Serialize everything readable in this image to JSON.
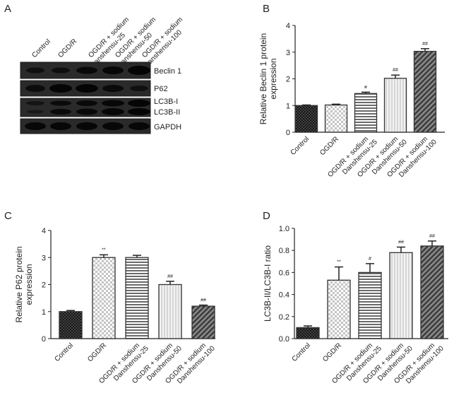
{
  "panels": {
    "a": {
      "letter": "A"
    },
    "b": {
      "letter": "B"
    },
    "c": {
      "letter": "C"
    },
    "d": {
      "letter": "D"
    }
  },
  "blot": {
    "lanes": [
      "Control",
      "OGD/R",
      "OGD/R + sodium Danshensu-25",
      "OGD/R + sodium Danshensu-50",
      "OGD/R + sodium Danshensu-100"
    ],
    "lane_label_lines": [
      [
        "Control"
      ],
      [
        "OGD/R"
      ],
      [
        "OGD/R + sodium",
        "Danshensu-25"
      ],
      [
        "OGD/R + sodium",
        "Danshensu-50"
      ],
      [
        "OGD/R + sodium",
        "Danshensu-100"
      ]
    ],
    "rows": [
      "Beclin 1",
      "P62",
      "LC3B-I",
      "LC3B-II",
      "GAPDH"
    ]
  },
  "chart_data": [
    {
      "panel": "B",
      "type": "bar",
      "categories": [
        "Control",
        "OGD/R",
        "OGD/R + sodium Danshensu-25",
        "OGD/R + sodium Danshensu-50",
        "OGD/R + sodium Danshensu-100"
      ],
      "category_lines": [
        [
          "Control"
        ],
        [
          "OGD/R"
        ],
        [
          "OGD/R + sodium",
          "Danshensu-25"
        ],
        [
          "OGD/R + sodium",
          "Danshensu-50"
        ],
        [
          "OGD/R + sodium",
          "Danshensu-100"
        ]
      ],
      "values": [
        1.0,
        1.02,
        1.45,
        2.02,
        3.03
      ],
      "errors": [
        0.02,
        0.03,
        0.05,
        0.12,
        0.1
      ],
      "annotations": [
        "",
        "",
        "#",
        "##",
        "##"
      ],
      "ylabel": [
        "Relative Beclin 1 protein",
        "expression"
      ],
      "ylim": [
        0,
        4
      ],
      "yticks": [
        0,
        1,
        2,
        3,
        4
      ],
      "ytick_labels": [
        "0",
        "1",
        "2",
        "3",
        "4"
      ]
    },
    {
      "panel": "C",
      "type": "bar",
      "categories": [
        "Control",
        "OGD/R",
        "OGD/R + sodium Danshensu-25",
        "OGD/R + sodium Danshensu-50",
        "OGD/R + sodium Danshensu-100"
      ],
      "category_lines": [
        [
          "Control"
        ],
        [
          "OGD/R"
        ],
        [
          "OGD/R + sodium",
          "Danshensu-25"
        ],
        [
          "OGD/R + sodium",
          "Danshensu-50"
        ],
        [
          "OGD/R + sodium",
          "Danshensu-100"
        ]
      ],
      "values": [
        1.0,
        3.0,
        3.0,
        2.0,
        1.2
      ],
      "errors": [
        0.04,
        0.1,
        0.08,
        0.12,
        0.04
      ],
      "annotations": [
        "",
        "**",
        "",
        "##",
        "##"
      ],
      "ylabel": [
        "Relative P62 protein",
        "expression"
      ],
      "ylim": [
        0,
        4
      ],
      "yticks": [
        0,
        1,
        2,
        3,
        4
      ],
      "ytick_labels": [
        "0",
        "1",
        "2",
        "3",
        "4"
      ]
    },
    {
      "panel": "D",
      "type": "bar",
      "categories": [
        "Control",
        "OGD/R",
        "OGD/R + sodium Danshensu-25",
        "OGD/R + sodium Danshensu-50",
        "OGD/R + sodium Danshensu-100"
      ],
      "category_lines": [
        [
          "Control"
        ],
        [
          "OGD/R"
        ],
        [
          "OGD/R + sodium",
          "Danshensu-25"
        ],
        [
          "OGD/R + sodium",
          "Danshensu-50"
        ],
        [
          "OGD/R + sodium",
          "Danshensu-100"
        ]
      ],
      "values": [
        0.1,
        0.53,
        0.6,
        0.78,
        0.84
      ],
      "errors": [
        0.015,
        0.12,
        0.08,
        0.05,
        0.045
      ],
      "annotations": [
        "",
        "**",
        "#",
        "##",
        "##"
      ],
      "ylabel": [
        "LC3B-II/LC3B-I ratio"
      ],
      "ylim": [
        0,
        1.0
      ],
      "yticks": [
        0,
        0.2,
        0.4,
        0.6,
        0.8,
        1.0
      ],
      "ytick_labels": [
        "0.0",
        "0.2",
        "0.4",
        "0.6",
        "0.8",
        "1.0"
      ]
    }
  ],
  "colors": {
    "axis": "#222222",
    "bar_stroke": "#333333",
    "blot_bg": "#1a1a1a",
    "band": "#050505"
  }
}
